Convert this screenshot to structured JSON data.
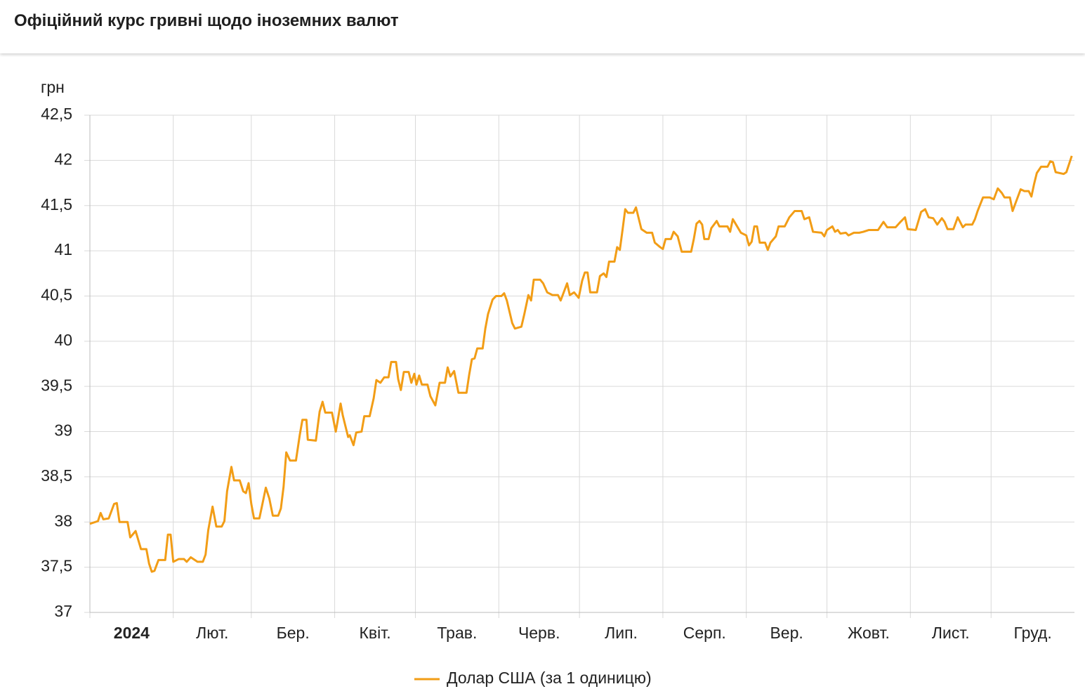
{
  "title": "Офіційний курс гривні щодо іноземних валют",
  "chart_data": {
    "type": "line",
    "y_label": "грн",
    "x": [
      0,
      3,
      4,
      5,
      7,
      9,
      10,
      11,
      14,
      15,
      17,
      19,
      21,
      22,
      23,
      24,
      25.5,
      28,
      29,
      30,
      31,
      33,
      35,
      36,
      37.5,
      40,
      42,
      43,
      44,
      45.6,
      47,
      49,
      50,
      51,
      52.6,
      53.6,
      55.7,
      57,
      58,
      59,
      60,
      61,
      63,
      64,
      65.4,
      66.7,
      68,
      70,
      71,
      72,
      73,
      74.4,
      76.6,
      78,
      79,
      80.5,
      81,
      84,
      85.4,
      86.5,
      87.5,
      90,
      91.4,
      92,
      93.2,
      94,
      96,
      96.6,
      98,
      99,
      101,
      102,
      104,
      105.5,
      106.5,
      108,
      109.4,
      111,
      112,
      113.8,
      114.6,
      115.6,
      116.7,
      118.5,
      119.5,
      120.6,
      121.4,
      122.4,
      123.4,
      125.5,
      126.6,
      128.4,
      130,
      132,
      133,
      134,
      135.4,
      137,
      140,
      141,
      142,
      143,
      144,
      146,
      147,
      148,
      149.7,
      151,
      153,
      154,
      155,
      157,
      158,
      160.4,
      161.5,
      163,
      164,
      165,
      167.4,
      168.5,
      170,
      172,
      174,
      175,
      177.4,
      178.4,
      180,
      181.7,
      183,
      184,
      185,
      186,
      188.5,
      189.6,
      191,
      192,
      193,
      195,
      196,
      197,
      198,
      199,
      200,
      202,
      203,
      205,
      207,
      209,
      210,
      212,
      213,
      214,
      216,
      217,
      218.5,
      220,
      223.5,
      224.5,
      225.5,
      226.6,
      227.6,
      228.4,
      230,
      231,
      233,
      234,
      237,
      238,
      239,
      240.6,
      242,
      244,
      245,
      246,
      247,
      248,
      249,
      251,
      252,
      253,
      255,
      256,
      258.3,
      260,
      262,
      264.6,
      265.6,
      267.4,
      268.8,
      272,
      273,
      274,
      276,
      277,
      278,
      279,
      281,
      282,
      284,
      286,
      287.5,
      289.6,
      293,
      295,
      296.4,
      299.5,
      301,
      302,
      303,
      304,
      307,
      308,
      309,
      310.5,
      311.8,
      313.5,
      315,
      316.7,
      317.7,
      318.8,
      321,
      322.6,
      324.5,
      325.5,
      328,
      329,
      330,
      332,
      334.5,
      336,
      337.5,
      339,
      340,
      342,
      343,
      344,
      346,
      347.4,
      349,
      350,
      351,
      352,
      353.6,
      356,
      357,
      358,
      359,
      362,
      363,
      365
    ],
    "series": [
      {
        "name": "Долар США (за 1 одиницю)",
        "color": "#f29d16",
        "values": [
          37.98,
          38.01,
          38.1,
          38.03,
          38.04,
          38.2,
          38.21,
          38.0,
          38.0,
          37.83,
          37.9,
          37.7,
          37.7,
          37.54,
          37.45,
          37.46,
          37.58,
          37.58,
          37.86,
          37.86,
          37.56,
          37.59,
          37.59,
          37.56,
          37.61,
          37.56,
          37.56,
          37.64,
          37.91,
          38.17,
          37.95,
          37.95,
          38.01,
          38.34,
          38.61,
          38.46,
          38.46,
          38.34,
          38.32,
          38.43,
          38.2,
          38.04,
          38.04,
          38.18,
          38.38,
          38.26,
          38.07,
          38.07,
          38.15,
          38.39,
          38.77,
          38.68,
          38.68,
          38.96,
          39.13,
          39.13,
          38.91,
          38.9,
          39.22,
          39.33,
          39.21,
          39.21,
          39.0,
          39.1,
          39.31,
          39.18,
          38.94,
          38.96,
          38.85,
          38.99,
          39.0,
          39.17,
          39.17,
          39.37,
          39.57,
          39.54,
          39.6,
          39.6,
          39.77,
          39.77,
          39.58,
          39.46,
          39.66,
          39.66,
          39.54,
          39.64,
          39.52,
          39.62,
          39.52,
          39.52,
          39.39,
          39.29,
          39.54,
          39.54,
          39.71,
          39.61,
          39.67,
          39.43,
          39.43,
          39.63,
          39.8,
          39.81,
          39.92,
          39.92,
          40.14,
          40.3,
          40.46,
          40.5,
          40.5,
          40.53,
          40.45,
          40.2,
          40.14,
          40.16,
          40.3,
          40.51,
          40.45,
          40.68,
          40.68,
          40.64,
          40.54,
          40.51,
          40.51,
          40.45,
          40.64,
          40.51,
          40.54,
          40.48,
          40.67,
          40.76,
          40.76,
          40.54,
          40.54,
          40.72,
          40.75,
          40.71,
          40.88,
          40.88,
          41.04,
          41.01,
          41.23,
          41.46,
          41.42,
          41.42,
          41.48,
          41.24,
          41.2,
          41.2,
          41.09,
          41.04,
          41.02,
          41.13,
          41.13,
          41.21,
          41.16,
          40.99,
          40.99,
          41.13,
          41.3,
          41.33,
          41.29,
          41.13,
          41.13,
          41.25,
          41.33,
          41.27,
          41.27,
          41.21,
          41.35,
          41.27,
          41.2,
          41.17,
          41.06,
          41.1,
          41.27,
          41.27,
          41.09,
          41.09,
          41.01,
          41.09,
          41.16,
          41.27,
          41.27,
          41.37,
          41.44,
          41.44,
          41.35,
          41.37,
          41.21,
          41.2,
          41.16,
          41.23,
          41.27,
          41.21,
          41.23,
          41.19,
          41.2,
          41.17,
          41.2,
          41.2,
          41.21,
          41.23,
          41.23,
          41.32,
          41.26,
          41.26,
          41.31,
          41.34,
          41.37,
          41.24,
          41.23,
          41.33,
          41.43,
          41.46,
          41.37,
          41.36,
          41.29,
          41.36,
          41.32,
          41.24,
          41.24,
          41.37,
          41.26,
          41.29,
          41.29,
          41.35,
          41.44,
          41.59,
          41.59,
          41.57,
          41.69,
          41.64,
          41.59,
          41.59,
          41.44,
          41.52,
          41.68,
          41.66,
          41.66,
          41.6,
          41.74,
          41.86,
          41.93,
          41.93,
          41.99,
          41.98,
          41.87,
          41.85,
          41.87,
          42.05
        ]
      }
    ],
    "xlim": [
      0,
      366
    ],
    "xticks": [
      {
        "value": 0,
        "label": "2024"
      },
      {
        "value": 31,
        "label": "Лют."
      },
      {
        "value": 60,
        "label": "Бер."
      },
      {
        "value": 91,
        "label": "Квіт."
      },
      {
        "value": 121,
        "label": "Трав."
      },
      {
        "value": 152,
        "label": "Черв."
      },
      {
        "value": 182,
        "label": "Лип."
      },
      {
        "value": 213,
        "label": "Серп."
      },
      {
        "value": 244,
        "label": "Вер."
      },
      {
        "value": 274,
        "label": "Жовт."
      },
      {
        "value": 305,
        "label": "Лист."
      },
      {
        "value": 335,
        "label": "Груд."
      }
    ],
    "ylim": [
      37,
      42.5
    ],
    "yticks": [
      37,
      {
        "value": 37.5,
        "label": "37,5"
      },
      38,
      {
        "value": 38.5,
        "label": "38,5"
      },
      39,
      {
        "value": 39.5,
        "label": "39,5"
      },
      40,
      {
        "value": 40.5,
        "label": "40,5"
      },
      41,
      {
        "value": 41.5,
        "label": "41,5"
      },
      42,
      {
        "value": 42.5,
        "label": "42,5"
      }
    ],
    "grid": true,
    "legend": "bottom"
  }
}
